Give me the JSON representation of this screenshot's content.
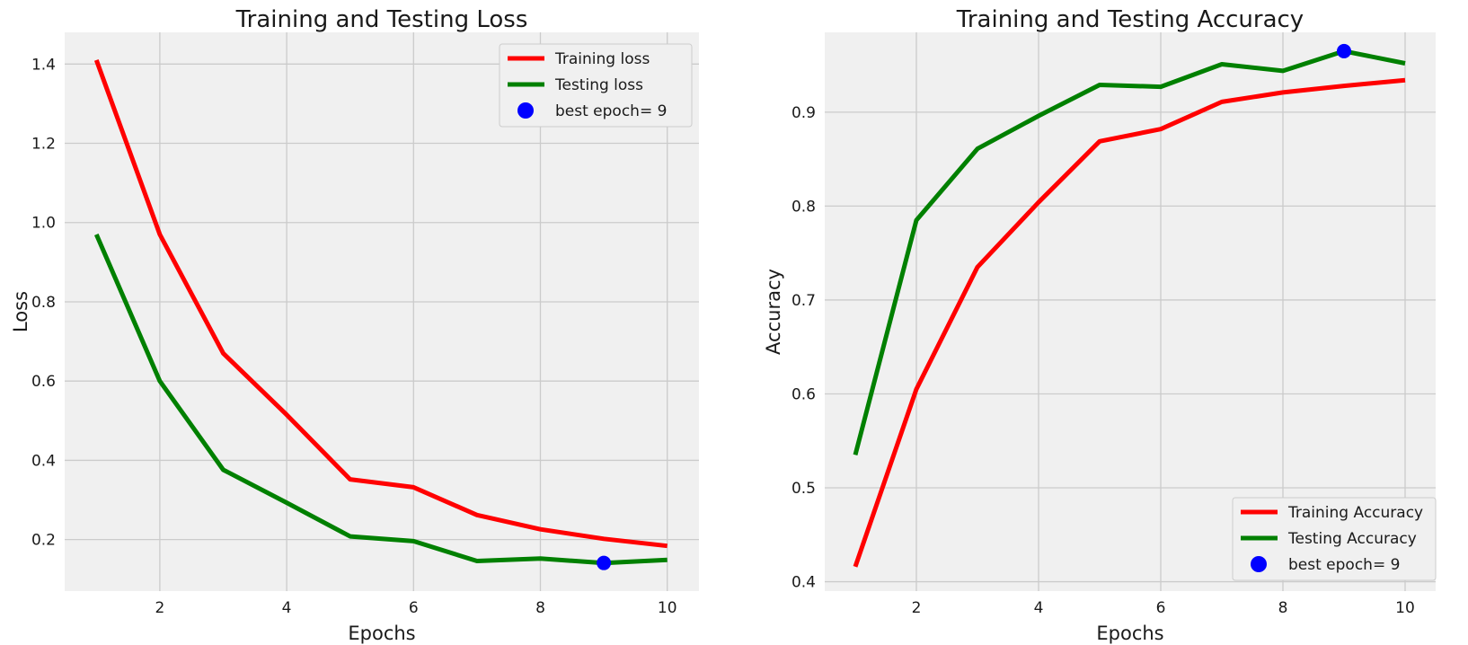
{
  "chart_data": [
    {
      "type": "line",
      "title": "Training and Testing Loss",
      "xlabel": "Epochs",
      "ylabel": "Loss",
      "xlim": [
        0.5,
        10.5
      ],
      "ylim": [
        0.07,
        1.48
      ],
      "xticks": [
        2,
        4,
        6,
        8,
        10
      ],
      "yticks": [
        0.2,
        0.4,
        0.6,
        0.8,
        1.0,
        1.2,
        1.4
      ],
      "grid": true,
      "legend_position": "top-right",
      "x": [
        1,
        2,
        3,
        4,
        5,
        6,
        7,
        8,
        9,
        10
      ],
      "series": [
        {
          "name": "Training loss",
          "color": "#ff0000",
          "values": [
            1.41,
            0.97,
            0.67,
            0.515,
            0.352,
            0.332,
            0.262,
            0.226,
            0.202,
            0.184
          ]
        },
        {
          "name": "Testing loss",
          "color": "#008000",
          "values": [
            0.97,
            0.6,
            0.376,
            0.293,
            0.208,
            0.196,
            0.146,
            0.152,
            0.141,
            0.149
          ]
        }
      ],
      "best_point": {
        "label": "best epoch= 9",
        "x": 9,
        "y": 0.141,
        "color": "#0000ff"
      }
    },
    {
      "type": "line",
      "title": "Training and Testing Accuracy",
      "xlabel": "Epochs",
      "ylabel": "Accuracy",
      "xlim": [
        0.5,
        10.5
      ],
      "ylim": [
        0.39,
        0.985
      ],
      "xticks": [
        2,
        4,
        6,
        8,
        10
      ],
      "yticks": [
        0.4,
        0.5,
        0.6,
        0.7,
        0.8,
        0.9
      ],
      "grid": true,
      "legend_position": "bottom-right",
      "x": [
        1,
        2,
        3,
        4,
        5,
        6,
        7,
        8,
        9,
        10
      ],
      "series": [
        {
          "name": "Training Accuracy",
          "color": "#ff0000",
          "values": [
            0.416,
            0.605,
            0.735,
            0.804,
            0.869,
            0.882,
            0.911,
            0.921,
            0.928,
            0.934
          ]
        },
        {
          "name": "Testing Accuracy",
          "color": "#008000",
          "values": [
            0.535,
            0.785,
            0.861,
            0.896,
            0.929,
            0.927,
            0.951,
            0.944,
            0.965,
            0.952
          ]
        }
      ],
      "best_point": {
        "label": "best epoch= 9",
        "x": 9,
        "y": 0.965,
        "color": "#0000ff"
      }
    }
  ]
}
